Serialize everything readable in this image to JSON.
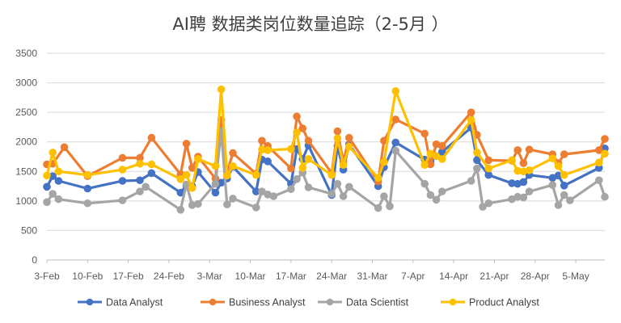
{
  "chart_data": {
    "type": "line",
    "title": "AI聘 数据类岗位数量追踪（2-5月 ）",
    "xlabel": "",
    "ylabel": "",
    "ylim": [
      0,
      3500
    ],
    "y_ticks": [
      0,
      500,
      1000,
      1500,
      2000,
      2500,
      3000,
      3500
    ],
    "x_tick_labels": [
      "3-Feb",
      "10-Feb",
      "17-Feb",
      "24-Feb",
      "3-Mar",
      "10-Mar",
      "17-Mar",
      "24-Mar",
      "31-Mar",
      "7-Apr",
      "14-Apr",
      "21-Apr",
      "28-Apr",
      "5-May"
    ],
    "grid": true,
    "legend_position": "bottom",
    "x_unit": "days since 3-Feb",
    "series": [
      {
        "name": "Data Analyst",
        "color": "#4472C4",
        "points": [
          [
            0,
            1240
          ],
          [
            1,
            1420
          ],
          [
            2,
            1340
          ],
          [
            7,
            1210
          ],
          [
            13,
            1340
          ],
          [
            16,
            1350
          ],
          [
            18,
            1470
          ],
          [
            23,
            1140
          ],
          [
            24,
            1260
          ],
          [
            25,
            1250
          ],
          [
            26,
            1490
          ],
          [
            29,
            1140
          ],
          [
            30,
            1310
          ],
          [
            31,
            1380
          ],
          [
            32,
            1580
          ],
          [
            36,
            1160
          ],
          [
            37,
            1700
          ],
          [
            38,
            1670
          ],
          [
            42,
            1290
          ],
          [
            43,
            1880
          ],
          [
            44,
            1710
          ],
          [
            45,
            1940
          ],
          [
            49,
            1100
          ],
          [
            50,
            1930
          ],
          [
            51,
            1530
          ],
          [
            52,
            1960
          ],
          [
            57,
            1250
          ],
          [
            58,
            1570
          ],
          [
            60,
            1990
          ],
          [
            65,
            1700
          ],
          [
            66,
            1660
          ],
          [
            67,
            1760
          ],
          [
            68,
            1830
          ],
          [
            73,
            2240
          ],
          [
            74,
            1690
          ],
          [
            76,
            1440
          ],
          [
            80,
            1300
          ],
          [
            81,
            1290
          ],
          [
            82,
            1320
          ],
          [
            83,
            1440
          ],
          [
            87,
            1390
          ],
          [
            88,
            1430
          ],
          [
            89,
            1260
          ],
          [
            95,
            1560
          ],
          [
            96,
            1890
          ]
        ]
      },
      {
        "name": "Business Analyst",
        "color": "#ED7D31",
        "points": [
          [
            0,
            1620
          ],
          [
            1,
            1630
          ],
          [
            3,
            1910
          ],
          [
            7,
            1420
          ],
          [
            13,
            1730
          ],
          [
            16,
            1730
          ],
          [
            18,
            2070
          ],
          [
            23,
            1450
          ],
          [
            24,
            1970
          ],
          [
            25,
            1560
          ],
          [
            26,
            1750
          ],
          [
            29,
            1380
          ],
          [
            30,
            2370
          ],
          [
            31,
            1480
          ],
          [
            32,
            1810
          ],
          [
            36,
            1460
          ],
          [
            37,
            2020
          ],
          [
            38,
            1930
          ],
          [
            42,
            1550
          ],
          [
            43,
            2430
          ],
          [
            44,
            2230
          ],
          [
            45,
            2020
          ],
          [
            49,
            1470
          ],
          [
            50,
            2180
          ],
          [
            51,
            1670
          ],
          [
            52,
            2070
          ],
          [
            57,
            1330
          ],
          [
            58,
            2020
          ],
          [
            60,
            2380
          ],
          [
            65,
            2140
          ],
          [
            66,
            1620
          ],
          [
            67,
            1960
          ],
          [
            68,
            1930
          ],
          [
            73,
            2500
          ],
          [
            74,
            2120
          ],
          [
            76,
            1690
          ],
          [
            80,
            1680
          ],
          [
            81,
            1860
          ],
          [
            82,
            1640
          ],
          [
            83,
            1870
          ],
          [
            87,
            1790
          ],
          [
            88,
            1640
          ],
          [
            89,
            1790
          ],
          [
            95,
            1860
          ],
          [
            96,
            2050
          ]
        ]
      },
      {
        "name": "Data Scientist",
        "color": "#A5A5A5",
        "points": [
          [
            0,
            980
          ],
          [
            1,
            1120
          ],
          [
            2,
            1030
          ],
          [
            7,
            960
          ],
          [
            13,
            1010
          ],
          [
            16,
            1160
          ],
          [
            17,
            1240
          ],
          [
            23,
            850
          ],
          [
            24,
            1280
          ],
          [
            25,
            930
          ],
          [
            26,
            950
          ],
          [
            29,
            1290
          ],
          [
            30,
            2180
          ],
          [
            31,
            940
          ],
          [
            32,
            1040
          ],
          [
            36,
            890
          ],
          [
            37,
            1160
          ],
          [
            38,
            1110
          ],
          [
            39,
            1080
          ],
          [
            42,
            1200
          ],
          [
            43,
            1370
          ],
          [
            44,
            1480
          ],
          [
            45,
            1230
          ],
          [
            49,
            1120
          ],
          [
            50,
            1290
          ],
          [
            51,
            1080
          ],
          [
            52,
            1240
          ],
          [
            57,
            880
          ],
          [
            58,
            1080
          ],
          [
            59,
            910
          ],
          [
            60,
            1850
          ],
          [
            65,
            1290
          ],
          [
            66,
            1100
          ],
          [
            67,
            1020
          ],
          [
            68,
            1160
          ],
          [
            73,
            1340
          ],
          [
            74,
            1550
          ],
          [
            75,
            900
          ],
          [
            76,
            960
          ],
          [
            80,
            1030
          ],
          [
            81,
            1070
          ],
          [
            82,
            1060
          ],
          [
            83,
            1160
          ],
          [
            87,
            1270
          ],
          [
            88,
            930
          ],
          [
            89,
            1100
          ],
          [
            90,
            1010
          ],
          [
            95,
            1350
          ],
          [
            96,
            1070
          ]
        ]
      },
      {
        "name": "Product Analyst",
        "color": "#FFC000",
        "points": [
          [
            0,
            1430
          ],
          [
            1,
            1820
          ],
          [
            2,
            1500
          ],
          [
            7,
            1440
          ],
          [
            13,
            1530
          ],
          [
            16,
            1630
          ],
          [
            18,
            1620
          ],
          [
            23,
            1370
          ],
          [
            24,
            1440
          ],
          [
            25,
            1220
          ],
          [
            26,
            1710
          ],
          [
            29,
            1590
          ],
          [
            30,
            2890
          ],
          [
            31,
            1430
          ],
          [
            32,
            1590
          ],
          [
            36,
            1440
          ],
          [
            37,
            1870
          ],
          [
            38,
            1860
          ],
          [
            42,
            1880
          ],
          [
            43,
            2160
          ],
          [
            44,
            1560
          ],
          [
            45,
            1710
          ],
          [
            49,
            1440
          ],
          [
            50,
            2060
          ],
          [
            51,
            1610
          ],
          [
            52,
            1920
          ],
          [
            57,
            1390
          ],
          [
            58,
            1660
          ],
          [
            60,
            2860
          ],
          [
            65,
            1610
          ],
          [
            66,
            1800
          ],
          [
            67,
            1760
          ],
          [
            68,
            1710
          ],
          [
            73,
            2370
          ],
          [
            74,
            1820
          ],
          [
            76,
            1550
          ],
          [
            80,
            1690
          ],
          [
            81,
            1510
          ],
          [
            82,
            1500
          ],
          [
            83,
            1520
          ],
          [
            87,
            1720
          ],
          [
            88,
            1590
          ],
          [
            89,
            1440
          ],
          [
            95,
            1650
          ],
          [
            96,
            1800
          ]
        ]
      }
    ]
  }
}
